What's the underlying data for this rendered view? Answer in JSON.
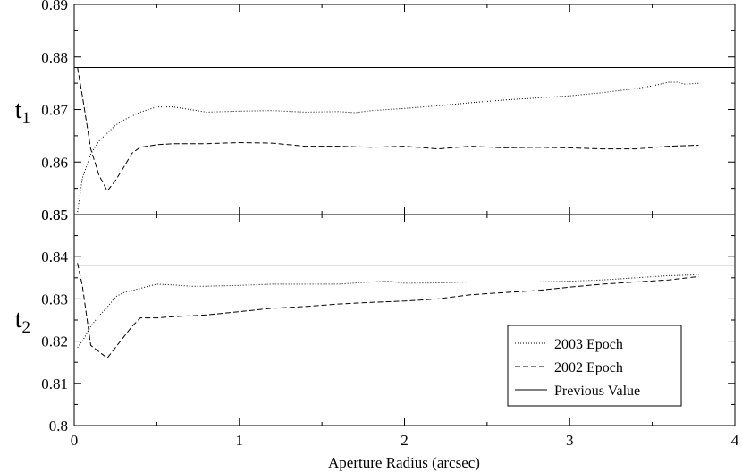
{
  "chart_data": [
    {
      "type": "line",
      "panel": "top",
      "ylabel": "t",
      "ylabel_subscript": "1",
      "xlabel": "",
      "xlim": [
        0,
        4
      ],
      "ylim": [
        0.85,
        0.89
      ],
      "yticks": [
        "0.85",
        "0.86",
        "0.87",
        "0.88",
        "0.89"
      ],
      "grid": false,
      "series": [
        {
          "name": "2003 Epoch",
          "style": "dotted",
          "x": [
            0.02,
            0.05,
            0.1,
            0.15,
            0.2,
            0.25,
            0.3,
            0.4,
            0.5,
            0.6,
            0.7,
            0.8,
            1.0,
            1.2,
            1.4,
            1.6,
            1.7,
            1.8,
            2.0,
            2.2,
            2.4,
            2.6,
            2.8,
            3.0,
            3.2,
            3.4,
            3.5,
            3.6,
            3.65,
            3.7,
            3.78
          ],
          "y": [
            0.8505,
            0.857,
            0.8615,
            0.864,
            0.8655,
            0.867,
            0.868,
            0.8695,
            0.8705,
            0.8705,
            0.87,
            0.8695,
            0.8697,
            0.8698,
            0.8695,
            0.8696,
            0.8694,
            0.8698,
            0.8702,
            0.8707,
            0.8713,
            0.8718,
            0.8722,
            0.8726,
            0.8732,
            0.874,
            0.8745,
            0.8752,
            0.8752,
            0.8748,
            0.875
          ]
        },
        {
          "name": "2002 Epoch",
          "style": "dashed",
          "x": [
            0.02,
            0.05,
            0.1,
            0.15,
            0.2,
            0.25,
            0.3,
            0.35,
            0.4,
            0.5,
            0.6,
            0.7,
            0.8,
            1.0,
            1.2,
            1.4,
            1.6,
            1.8,
            2.0,
            2.2,
            2.4,
            2.6,
            2.8,
            3.0,
            3.2,
            3.4,
            3.6,
            3.78
          ],
          "y": [
            0.878,
            0.8725,
            0.8625,
            0.8575,
            0.8545,
            0.8565,
            0.859,
            0.8617,
            0.8628,
            0.8633,
            0.8635,
            0.8635,
            0.8635,
            0.8637,
            0.8636,
            0.863,
            0.863,
            0.8628,
            0.863,
            0.8625,
            0.863,
            0.8627,
            0.8628,
            0.8627,
            0.8625,
            0.8625,
            0.863,
            0.8632
          ]
        },
        {
          "name": "Previous Value",
          "style": "solid",
          "x": [
            0,
            4
          ],
          "y": [
            0.878,
            0.878
          ]
        }
      ]
    },
    {
      "type": "line",
      "panel": "bottom",
      "ylabel": "t",
      "ylabel_subscript": "2",
      "xlabel": "Aperture Radius (arcsec)",
      "xlim": [
        0,
        4
      ],
      "ylim": [
        0.8,
        0.85
      ],
      "yticks": [
        "0.8",
        "0.81",
        "0.82",
        "0.83",
        "0.84",
        "0.85"
      ],
      "xticks": [
        "0",
        "1",
        "2",
        "3",
        "4"
      ],
      "grid": false,
      "legend_position": "bottom-right",
      "series": [
        {
          "name": "2003 Epoch",
          "style": "dotted",
          "x": [
            0.02,
            0.05,
            0.1,
            0.15,
            0.2,
            0.25,
            0.3,
            0.4,
            0.5,
            0.6,
            0.7,
            0.8,
            1.0,
            1.2,
            1.4,
            1.6,
            1.8,
            1.9,
            2.0,
            2.2,
            2.4,
            2.6,
            2.8,
            3.0,
            3.2,
            3.4,
            3.6,
            3.78
          ],
          "y": [
            0.8185,
            0.82,
            0.8235,
            0.826,
            0.828,
            0.8305,
            0.8315,
            0.8325,
            0.8335,
            0.8333,
            0.833,
            0.833,
            0.8332,
            0.8335,
            0.8335,
            0.8335,
            0.834,
            0.8342,
            0.8337,
            0.8338,
            0.834,
            0.834,
            0.834,
            0.8342,
            0.8345,
            0.835,
            0.8355,
            0.8357
          ]
        },
        {
          "name": "2002 Epoch",
          "style": "dashed",
          "x": [
            0.02,
            0.05,
            0.1,
            0.15,
            0.2,
            0.25,
            0.3,
            0.35,
            0.4,
            0.5,
            0.6,
            0.7,
            0.8,
            1.0,
            1.2,
            1.4,
            1.6,
            1.8,
            2.0,
            2.2,
            2.4,
            2.6,
            2.8,
            3.0,
            3.2,
            3.4,
            3.6,
            3.78
          ],
          "y": [
            0.8385,
            0.833,
            0.819,
            0.8175,
            0.816,
            0.8185,
            0.821,
            0.8235,
            0.8255,
            0.8255,
            0.8258,
            0.826,
            0.8262,
            0.827,
            0.8278,
            0.8282,
            0.8288,
            0.8292,
            0.8295,
            0.83,
            0.831,
            0.8315,
            0.832,
            0.8328,
            0.8335,
            0.834,
            0.8345,
            0.8353
          ]
        },
        {
          "name": "Previous Value",
          "style": "solid",
          "x": [
            0,
            4
          ],
          "y": [
            0.838,
            0.838
          ]
        }
      ]
    }
  ]
}
